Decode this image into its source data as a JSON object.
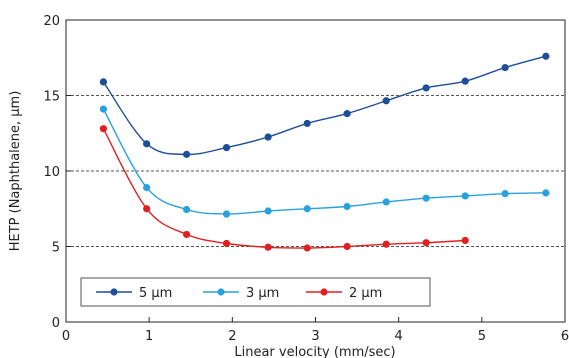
{
  "chart_data": {
    "type": "line",
    "xlabel": "Linear velocity (mm/sec)",
    "ylabel": "HETP (Naphthalene, µm)",
    "xlim": [
      0,
      6
    ],
    "ylim": [
      0,
      20
    ],
    "xticks": [
      "0",
      "1",
      "2",
      "3",
      "4",
      "5",
      "6"
    ],
    "yticks": [
      "0",
      "5",
      "10",
      "15",
      "20"
    ],
    "grid": {
      "horizontal_dashed_at": [
        5,
        10,
        15
      ]
    },
    "legend_position": "bottom-left",
    "series": [
      {
        "name": "5 µm",
        "color": "#1d4e9a",
        "x": [
          0.45,
          0.97,
          1.45,
          1.93,
          2.43,
          2.9,
          3.38,
          3.85,
          4.33,
          4.8,
          5.28,
          5.77
        ],
        "y": [
          15.9,
          11.8,
          11.1,
          11.55,
          12.25,
          13.15,
          13.8,
          14.65,
          15.5,
          15.95,
          16.85,
          17.6
        ]
      },
      {
        "name": "3 µm",
        "color": "#2aa1dc",
        "x": [
          0.45,
          0.97,
          1.45,
          1.93,
          2.43,
          2.9,
          3.38,
          3.85,
          4.33,
          4.8,
          5.28,
          5.77
        ],
        "y": [
          14.1,
          8.9,
          7.45,
          7.15,
          7.35,
          7.5,
          7.65,
          7.95,
          8.2,
          8.35,
          8.5,
          8.55
        ]
      },
      {
        "name": "2 µm",
        "color": "#e02020",
        "x": [
          0.45,
          0.97,
          1.45,
          1.93,
          2.43,
          2.9,
          3.38,
          3.85,
          4.33,
          4.8
        ],
        "y": [
          12.8,
          7.5,
          5.8,
          5.2,
          4.95,
          4.9,
          5.0,
          5.15,
          5.25,
          5.4
        ]
      }
    ]
  }
}
